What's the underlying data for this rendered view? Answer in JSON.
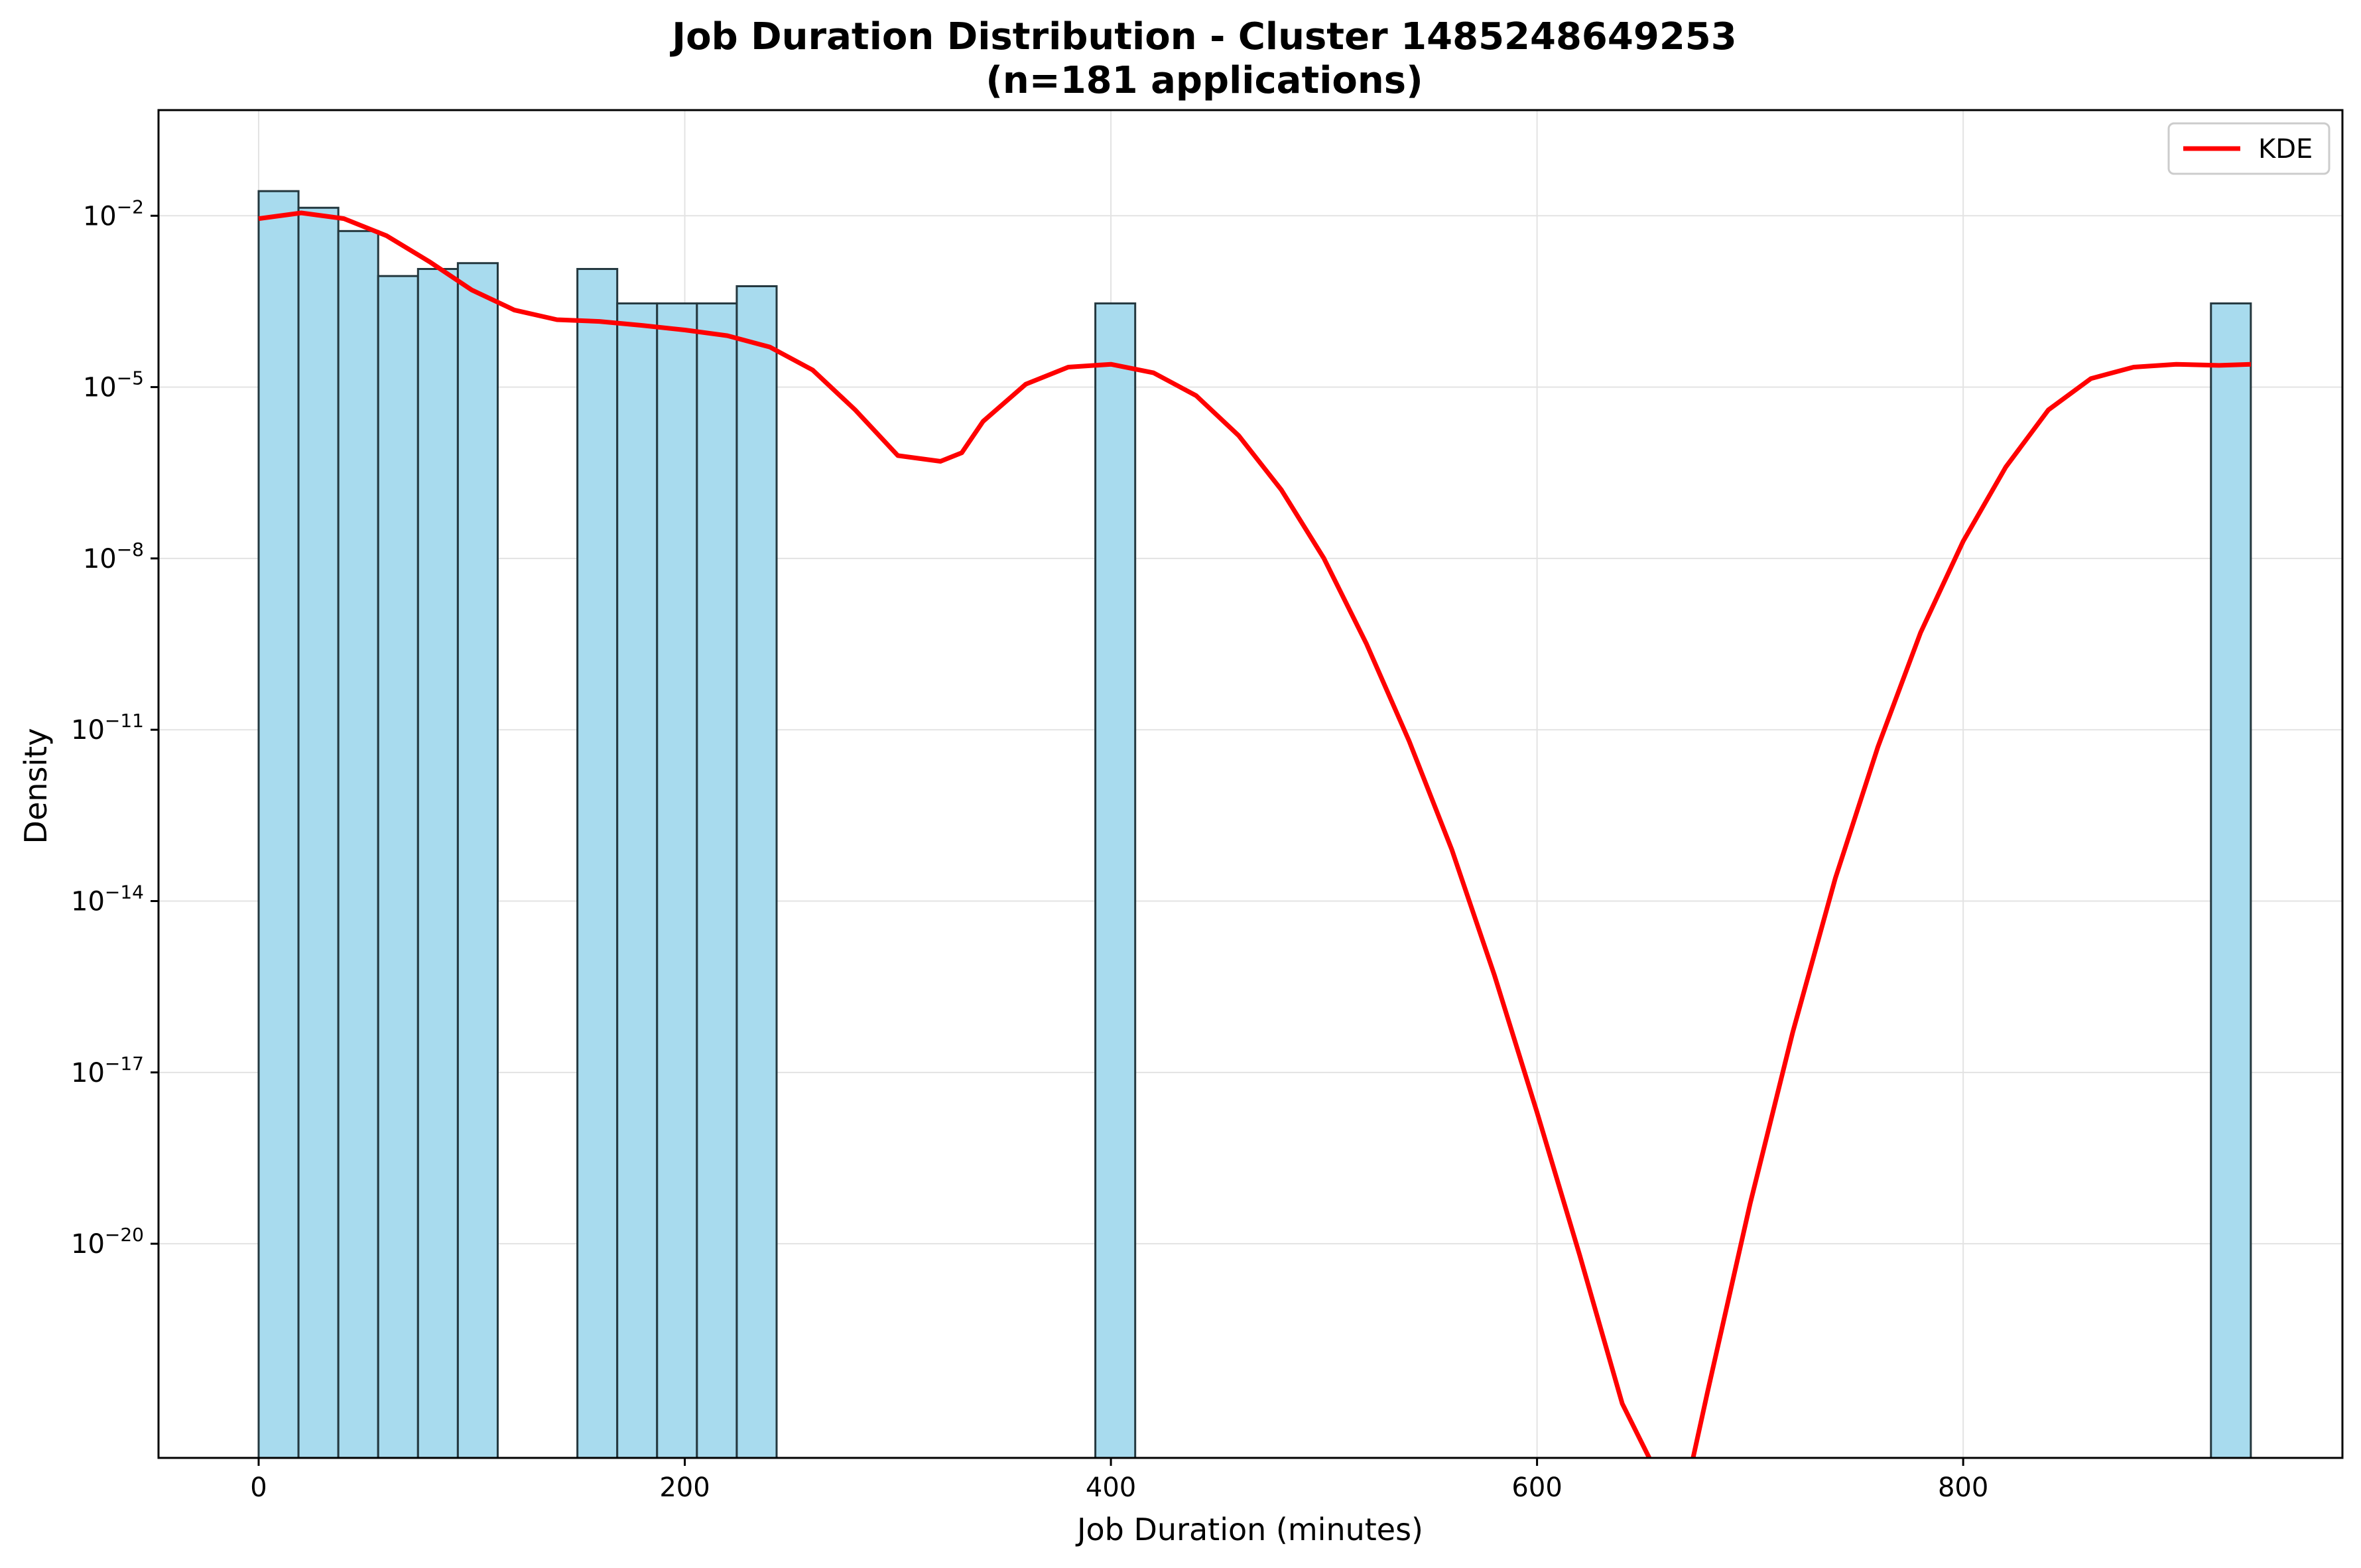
{
  "chart_data": {
    "type": "bar",
    "title": "Job Duration Distribution - Cluster 1485248649253",
    "subtitle": "(n=181 applications)",
    "xlabel": "Job Duration (minutes)",
    "ylabel": "Density",
    "xlim": [
      -47,
      978
    ],
    "ylim_log10": [
      -23.75,
      -0.15
    ],
    "y_scale": "log",
    "grid": true,
    "legend_position": "top-right",
    "bar_color": "#a8dbee",
    "bar_edge_color": "#24383f",
    "kde_color": "#ff0000",
    "x_ticks": [
      {
        "value": 0,
        "label": "0"
      },
      {
        "value": 200,
        "label": "200"
      },
      {
        "value": 400,
        "label": "400"
      },
      {
        "value": 600,
        "label": "600"
      },
      {
        "value": 800,
        "label": "800"
      }
    ],
    "y_ticks": [
      {
        "exp": -2,
        "base": "10",
        "sup": "−2"
      },
      {
        "exp": -5,
        "base": "10",
        "sup": "−5"
      },
      {
        "exp": -8,
        "base": "10",
        "sup": "−8"
      },
      {
        "exp": -11,
        "base": "10",
        "sup": "−11"
      },
      {
        "exp": -14,
        "base": "10",
        "sup": "−14"
      },
      {
        "exp": -17,
        "base": "10",
        "sup": "−17"
      },
      {
        "exp": -20,
        "base": "10",
        "sup": "−20"
      }
    ],
    "histogram": {
      "bin_width": 18.7,
      "bins": [
        {
          "x0": 0.0,
          "density": 0.027
        },
        {
          "x0": 18.7,
          "density": 0.0138
        },
        {
          "x0": 37.4,
          "density": 0.0054
        },
        {
          "x0": 56.1,
          "density": 0.00088
        },
        {
          "x0": 74.8,
          "density": 0.00117
        },
        {
          "x0": 93.5,
          "density": 0.00148
        },
        {
          "x0": 149.6,
          "density": 0.00117
        },
        {
          "x0": 168.3,
          "density": 0.000292
        },
        {
          "x0": 187.0,
          "density": 0.000292
        },
        {
          "x0": 205.7,
          "density": 0.000292
        },
        {
          "x0": 224.4,
          "density": 0.000584
        },
        {
          "x0": 392.7,
          "density": 0.000292
        },
        {
          "x0": 916.3,
          "density": 0.000292
        }
      ]
    },
    "series": [
      {
        "name": "KDE",
        "x": [
          0,
          20,
          40,
          60,
          80,
          100,
          120,
          140,
          160,
          180,
          200,
          220,
          240,
          260,
          280,
          300,
          320,
          330,
          340,
          360,
          380,
          400,
          420,
          440,
          460,
          480,
          500,
          520,
          540,
          560,
          580,
          600,
          620,
          640,
          660,
          665,
          670,
          680,
          700,
          720,
          740,
          760,
          780,
          800,
          820,
          840,
          860,
          880,
          900,
          920,
          935
        ],
        "log10_y": [
          -2.05,
          -1.95,
          -2.05,
          -2.35,
          -2.8,
          -3.3,
          -3.65,
          -3.82,
          -3.85,
          -3.92,
          -4.0,
          -4.1,
          -4.3,
          -4.7,
          -5.4,
          -6.2,
          -6.3,
          -6.15,
          -5.6,
          -4.95,
          -4.65,
          -4.6,
          -4.75,
          -5.15,
          -5.85,
          -6.8,
          -8.0,
          -9.5,
          -11.2,
          -13.1,
          -15.3,
          -17.7,
          -20.2,
          -22.8,
          -24.3,
          -24.6,
          -24.3,
          -22.6,
          -19.3,
          -16.3,
          -13.6,
          -11.3,
          -9.3,
          -7.7,
          -6.4,
          -5.4,
          -4.85,
          -4.65,
          -4.6,
          -4.62,
          -4.6
        ]
      }
    ]
  }
}
